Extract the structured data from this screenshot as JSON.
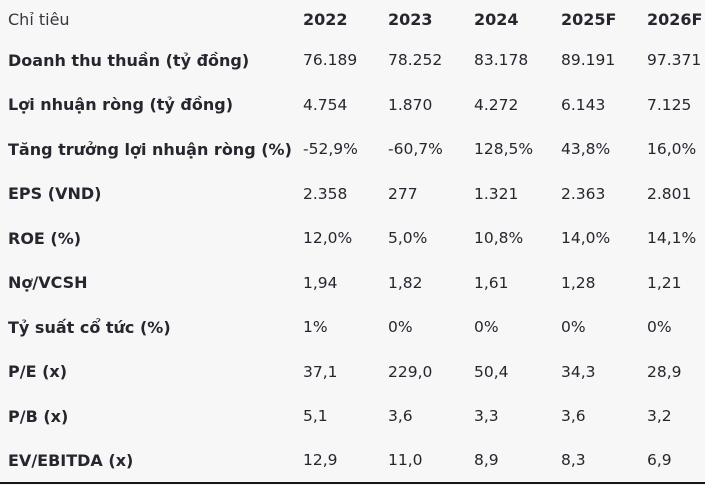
{
  "colors": {
    "background": "#f7f7f8",
    "text": "#26262e",
    "bottom_border": "#15151c"
  },
  "chart_data": {
    "type": "table",
    "title": "",
    "columns": [
      "Chỉ tiêu",
      "2022",
      "2023",
      "2024",
      "2025F",
      "2026F"
    ],
    "rows": [
      {
        "label": "Doanh thu thuần (tỷ đồng)",
        "values": [
          "76.189",
          "78.252",
          "83.178",
          "89.191",
          "97.371"
        ]
      },
      {
        "label": "Lợi nhuận ròng (tỷ đồng)",
        "values": [
          "4.754",
          "1.870",
          "4.272",
          "6.143",
          "7.125"
        ]
      },
      {
        "label": "Tăng trưởng lợi nhuận ròng (%)",
        "values": [
          "-52,9%",
          "-60,7%",
          "128,5%",
          "43,8%",
          "16,0%"
        ]
      },
      {
        "label": "EPS (VND)",
        "values": [
          "2.358",
          "277",
          "1.321",
          "2.363",
          "2.801"
        ]
      },
      {
        "label": "ROE (%)",
        "values": [
          "12,0%",
          "5,0%",
          "10,8%",
          "14,0%",
          "14,1%"
        ]
      },
      {
        "label": "Nợ/VCSH",
        "values": [
          "1,94",
          "1,82",
          "1,61",
          "1,28",
          "1,21"
        ]
      },
      {
        "label": "Tỷ suất cổ tức (%)",
        "values": [
          "1%",
          "0%",
          "0%",
          "0%",
          "0%"
        ]
      },
      {
        "label": "P/E (x)",
        "values": [
          "37,1",
          "229,0",
          "50,4",
          "34,3",
          "28,9"
        ]
      },
      {
        "label": "P/B (x)",
        "values": [
          "5,1",
          "3,6",
          "3,3",
          "3,6",
          "3,2"
        ]
      },
      {
        "label": "EV/EBITDA (x)",
        "values": [
          "12,9",
          "11,0",
          "8,9",
          "8,3",
          "6,9"
        ]
      }
    ],
    "layout": {
      "header_bold": true,
      "row_labels_bold": true,
      "gridlines": "none",
      "bottom_rule": true
    }
  }
}
